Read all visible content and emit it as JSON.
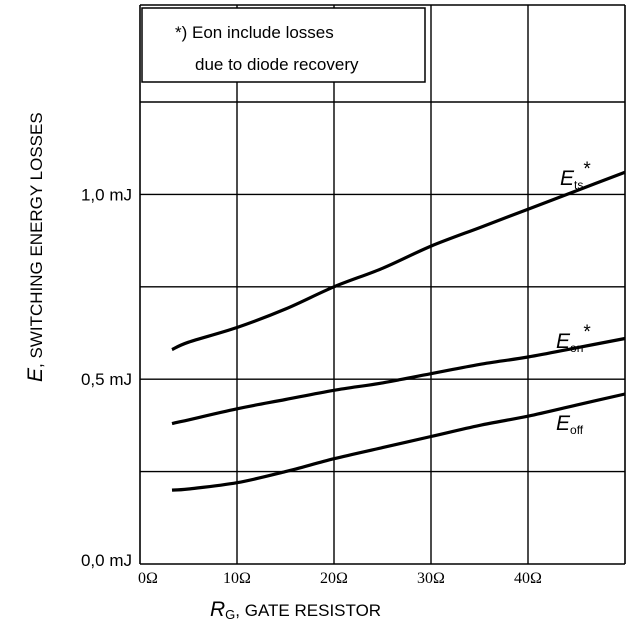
{
  "chart_data": {
    "type": "line",
    "xlabel_symbol": "R",
    "xlabel_sub": "G",
    "xlabel_text": ", GATE RESISTOR",
    "ylabel_symbol": "E",
    "ylabel_text": ", SWITCHING ENERGY LOSSES",
    "xlim": [
      0,
      50
    ],
    "ylim": [
      0,
      1.25
    ],
    "x_ticks": [
      {
        "value": 0,
        "label": "0Ω"
      },
      {
        "value": 10,
        "label": "10Ω"
      },
      {
        "value": 20,
        "label": "20Ω"
      },
      {
        "value": 30,
        "label": "30Ω"
      },
      {
        "value": 40,
        "label": "40Ω"
      }
    ],
    "y_ticks": [
      {
        "value": 0,
        "label": "0,0 mJ"
      },
      {
        "value": 0.5,
        "label": "0,5 mJ"
      },
      {
        "value": 1.0,
        "label": "1,0 mJ"
      }
    ],
    "y_gridlines": [
      0.25,
      0.5,
      0.75,
      1.0,
      1.25
    ],
    "note_lines": [
      "*) Eon include losses",
      "due to diode recovery"
    ],
    "series": [
      {
        "name": "E",
        "sub": "ts",
        "sup": "*",
        "x": [
          3.3,
          5,
          10,
          15,
          20,
          25,
          30,
          35,
          40,
          45,
          50
        ],
        "y": [
          0.58,
          0.6,
          0.64,
          0.69,
          0.75,
          0.8,
          0.86,
          0.91,
          0.96,
          1.01,
          1.06
        ]
      },
      {
        "name": "E",
        "sub": "on",
        "sup": "*",
        "x": [
          3.3,
          5,
          10,
          15,
          20,
          25,
          30,
          35,
          40,
          45,
          50
        ],
        "y": [
          0.38,
          0.39,
          0.42,
          0.445,
          0.47,
          0.49,
          0.515,
          0.54,
          0.56,
          0.585,
          0.61
        ]
      },
      {
        "name": "E",
        "sub": "off",
        "sup": "",
        "x": [
          3.3,
          5,
          10,
          15,
          20,
          25,
          30,
          35,
          40,
          45,
          50
        ],
        "y": [
          0.2,
          0.203,
          0.22,
          0.25,
          0.285,
          0.315,
          0.345,
          0.375,
          0.4,
          0.43,
          0.46
        ]
      }
    ]
  }
}
